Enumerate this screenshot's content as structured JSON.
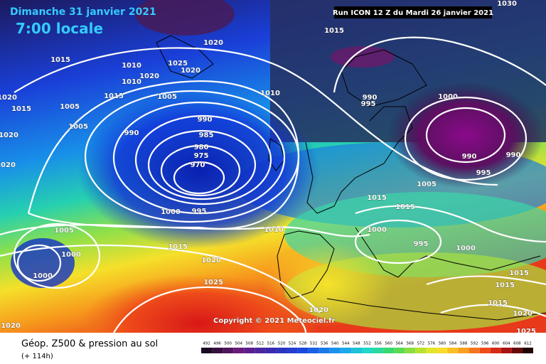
{
  "header": {
    "date": "Dimanche 31 janvier 2021",
    "time": "7:00 locale",
    "run": "Run ICON 12 Z du Mardi 26 janvier 2021"
  },
  "copyright": "Copyright © 2021 Meteociel.fr",
  "footer": {
    "title": "Géop. Z500 & pression au sol",
    "lead": "(+ 114h)"
  },
  "colorbar": {
    "values": [
      492,
      496,
      500,
      504,
      508,
      512,
      516,
      520,
      524,
      528,
      532,
      536,
      540,
      544,
      548,
      552,
      556,
      560,
      564,
      568,
      572,
      576,
      580,
      584,
      588,
      592,
      596,
      600,
      604,
      608,
      612
    ]
  },
  "isobars": {
    "labels": [
      "1015",
      "1010",
      "1020",
      "1025",
      "1020",
      "1010",
      "1015",
      "1005",
      "1005",
      "1005",
      "990",
      "990",
      "985",
      "980",
      "975",
      "970",
      "1000",
      "995",
      "1010",
      "1015",
      "1000",
      "990",
      "990",
      "995",
      "1005",
      "1015",
      "1015",
      "1010",
      "1005",
      "1000",
      "1000",
      "1015",
      "1020",
      "1025",
      "1000",
      "995",
      "1000",
      "1015",
      "1015",
      "1015",
      "1020",
      "1025",
      "1020",
      "1020",
      "1020",
      "1015",
      "1020",
      "1020",
      "990",
      "995",
      "1030",
      "1020"
    ]
  }
}
